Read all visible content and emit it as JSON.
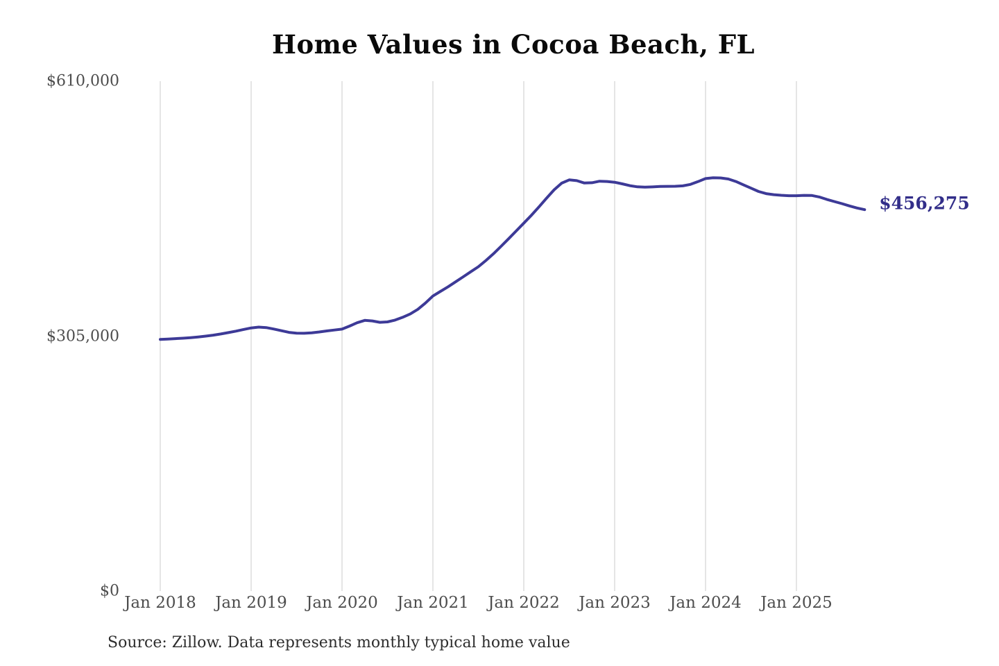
{
  "chart_data": {
    "type": "line",
    "title": "Home Values in Cocoa Beach, FL",
    "source_note": "Source: Zillow. Data represents monthly typical home value",
    "end_label": "$456,275",
    "end_value": 456275,
    "ylim": [
      0,
      610000
    ],
    "grid": "vertical",
    "legend": "none",
    "x_start": "2018-01",
    "x_end": "2025-10",
    "x_interval": "monthly",
    "x_tick_labels": [
      "Jan 2018",
      "Jan 2019",
      "Jan 2020",
      "Jan 2021",
      "Jan 2022",
      "Jan 2023",
      "Jan 2024",
      "Jan 2025"
    ],
    "y_ticks": [
      {
        "label": "$0",
        "value": 0
      },
      {
        "label": "$305,000",
        "value": 305000
      },
      {
        "label": "$610,000",
        "value": 610000
      }
    ],
    "series": [
      {
        "name": "Typical home value",
        "values": [
          301000,
          301500,
          302000,
          302500,
          303200,
          304000,
          305000,
          306200,
          307600,
          309200,
          311000,
          313000,
          314800,
          315800,
          315200,
          313500,
          311500,
          309500,
          308500,
          308400,
          309000,
          310000,
          311200,
          312300,
          313400,
          317000,
          321000,
          323800,
          323200,
          321500,
          322000,
          324200,
          327500,
          331500,
          337000,
          344500,
          353000,
          358500,
          364000,
          370000,
          376000,
          382000,
          388000,
          395500,
          403500,
          412500,
          421500,
          430800,
          440100,
          449500,
          459500,
          470000,
          480000,
          488000,
          491900,
          491000,
          488200,
          488500,
          490300,
          490000,
          489100,
          487200,
          485000,
          483600,
          483200,
          483500,
          484000,
          484200,
          484300,
          484800,
          486500,
          489800,
          493500,
          494500,
          494200,
          493000,
          490000,
          486000,
          482000,
          478000,
          475500,
          474200,
          473500,
          473000,
          473000,
          473400,
          473300,
          471500,
          468600,
          466000,
          463500,
          460800,
          458300,
          456275
        ]
      }
    ],
    "colors": {
      "line": "#3d3a97",
      "end_label": "#322e89",
      "gridline": "#cbcbcb",
      "axis_label": "#4d4d4d",
      "title": "#0a0a0a",
      "source": "#2d2d2d",
      "background": "#ffffff"
    }
  }
}
